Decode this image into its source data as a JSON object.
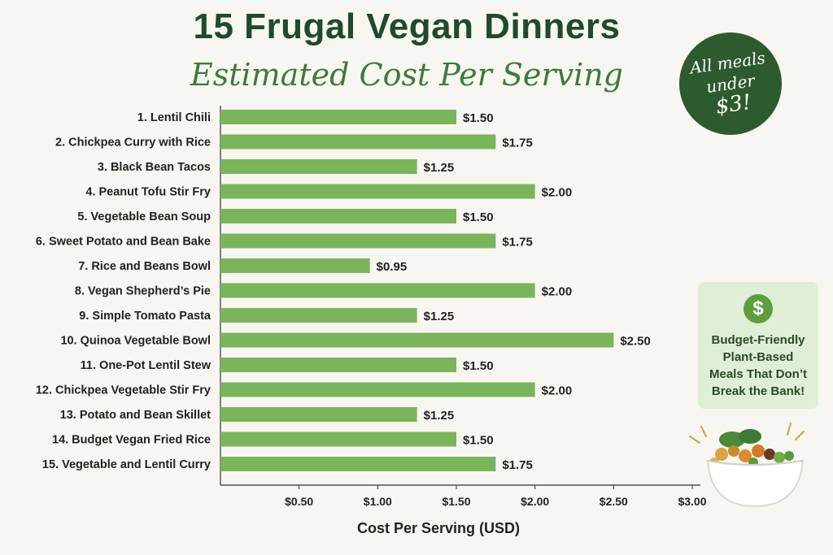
{
  "header": {
    "title": "15 Frugal Vegan Dinners",
    "subtitle": "Estimated Cost Per Serving"
  },
  "badge": {
    "line1": "All meals",
    "line2": "under",
    "line3": "$3!"
  },
  "info_card": {
    "icon": "dollar-icon",
    "icon_glyph": "$",
    "text": "Budget-Friendly Plant-Based Meals That Don’t Break the Bank!"
  },
  "colors": {
    "bar": "#7ab55c",
    "title": "#1f4a2c",
    "subtitle": "#3d7a3c",
    "badge_bg": "#2d5a2f",
    "card_bg": "#dfeed6",
    "background": "#f8f6f1"
  },
  "chart_data": {
    "type": "bar",
    "orientation": "horizontal",
    "categories": [
      "1. Lentil Chili",
      "2. Chickpea Curry with Rice",
      "3. Black Bean Tacos",
      "4. Peanut Tofu Stir Fry",
      "5. Vegetable Bean Soup",
      "6. Sweet Potato and Bean Bake",
      "7. Rice and Beans Bowl",
      "8. Vegan Shepherd’s Pie",
      "9. Simple Tomato Pasta",
      "10. Quinoa Vegetable Bowl",
      "11. One-Pot Lentil Stew",
      "12. Chickpea Vegetable Stir Fry",
      "13. Potato and Bean Skillet",
      "14. Budget Vegan Fried Rice",
      "15. Vegetable and Lentil Curry"
    ],
    "values": [
      1.5,
      1.75,
      1.25,
      2.0,
      1.5,
      1.75,
      0.95,
      2.0,
      1.25,
      2.5,
      1.5,
      2.0,
      1.25,
      1.5,
      1.75
    ],
    "data_labels": [
      "$1.50",
      "$1.75",
      "$1.25",
      "$2.00",
      "$1.50",
      "$1.75",
      "$0.95",
      "$2.00",
      "$1.25",
      "$2.50",
      "$1.50",
      "$2.00",
      "$1.25",
      "$1.50",
      "$1.75"
    ],
    "xlabel": "Cost Per Serving (USD)",
    "xlim": [
      0,
      3.0
    ],
    "xticks": [
      0.5,
      1.0,
      1.5,
      2.0,
      2.5,
      3.0
    ],
    "xtick_labels": [
      "$0.50",
      "$1.00",
      "$1.50",
      "$2.00",
      "$2.50",
      "$3.00"
    ],
    "grid": false,
    "legend": "none"
  }
}
